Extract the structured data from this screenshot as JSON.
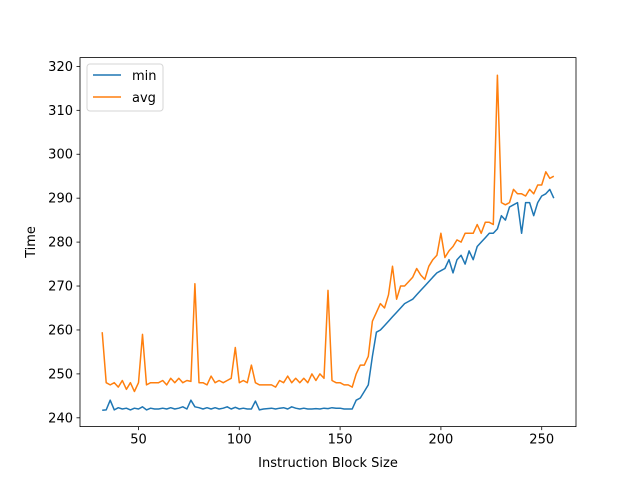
{
  "chart_data": {
    "type": "line",
    "title": "",
    "xlabel": "Instruction Block Size",
    "ylabel": "Time",
    "xlim": [
      21,
      267
    ],
    "ylim": [
      238,
      322
    ],
    "xticks": [
      50,
      100,
      150,
      200,
      250
    ],
    "yticks": [
      240,
      250,
      260,
      270,
      280,
      290,
      300,
      310,
      320
    ],
    "grid": false,
    "legend": "upper-left",
    "x": [
      32,
      34,
      36,
      38,
      40,
      42,
      44,
      46,
      48,
      50,
      52,
      54,
      56,
      58,
      60,
      62,
      64,
      66,
      68,
      70,
      72,
      74,
      76,
      78,
      80,
      82,
      84,
      86,
      88,
      90,
      92,
      94,
      96,
      98,
      100,
      102,
      104,
      106,
      108,
      110,
      112,
      114,
      116,
      118,
      120,
      122,
      124,
      126,
      128,
      130,
      132,
      134,
      136,
      138,
      140,
      142,
      144,
      146,
      148,
      150,
      152,
      154,
      156,
      158,
      160,
      162,
      164,
      166,
      168,
      170,
      172,
      174,
      176,
      178,
      180,
      182,
      184,
      186,
      188,
      190,
      192,
      194,
      196,
      198,
      200,
      202,
      204,
      206,
      208,
      210,
      212,
      214,
      216,
      218,
      220,
      222,
      224,
      226,
      228,
      230,
      232,
      234,
      236,
      238,
      240,
      242,
      244,
      246,
      248,
      250,
      252,
      254,
      256
    ],
    "series": [
      {
        "name": "min",
        "color": "#1f77b4",
        "values": [
          241.7,
          241.8,
          244,
          241.8,
          242.3,
          242,
          242.2,
          241.8,
          242.2,
          242,
          242.5,
          241.8,
          242.2,
          242,
          242,
          242.2,
          242,
          242.3,
          242,
          242.2,
          242.5,
          242,
          244,
          242.5,
          242.3,
          242,
          242.3,
          242,
          242.3,
          242,
          242.2,
          242.5,
          242,
          242.4,
          242,
          242.2,
          242,
          242,
          243.8,
          241.8,
          242,
          242.1,
          242.2,
          242,
          242.2,
          242.3,
          242,
          242.5,
          242.2,
          242,
          242.2,
          242,
          242,
          242.1,
          242,
          242.2,
          242.1,
          242.3,
          242.2,
          242.2,
          242,
          242,
          242,
          244,
          244.5,
          246,
          247.5,
          254,
          259.5,
          260,
          261,
          262,
          263,
          264,
          265,
          266,
          266.5,
          267,
          268,
          269,
          270,
          271,
          272,
          273,
          273.5,
          274,
          276,
          273,
          276,
          277,
          275,
          278,
          276,
          279,
          280,
          281,
          282,
          282,
          283,
          286,
          285,
          288,
          288.5,
          289,
          282,
          289,
          289,
          286,
          289,
          290.5,
          291,
          292,
          290
        ]
      },
      {
        "name": "avg",
        "color": "#ff7f0e",
        "values": [
          259.5,
          248,
          247.5,
          248,
          247,
          248.5,
          246.5,
          248,
          246,
          248,
          259,
          247.5,
          248,
          248,
          248,
          248.5,
          247.5,
          249,
          248,
          249,
          248,
          248.5,
          248.3,
          270.5,
          248,
          248,
          247.5,
          249.5,
          248,
          248.5,
          248,
          248.5,
          249,
          256,
          248,
          248.5,
          248,
          252,
          248,
          247.5,
          247.5,
          247.5,
          247.5,
          247,
          248.5,
          248,
          249.5,
          248,
          249,
          248,
          249,
          248,
          250,
          248.5,
          250,
          249,
          269,
          248.5,
          248,
          248,
          247.5,
          247.5,
          247,
          250,
          252,
          252,
          254,
          262,
          264,
          266,
          265,
          268,
          274.5,
          267,
          270,
          270,
          271,
          272,
          274,
          272.5,
          271.5,
          274.5,
          276,
          277,
          282,
          276.5,
          278,
          279,
          280.5,
          280,
          282,
          282,
          282,
          284,
          282,
          284.5,
          284.5,
          284,
          318,
          289,
          288.5,
          289,
          292,
          291,
          291,
          290.5,
          292,
          291,
          293,
          293,
          296,
          294.5,
          295
        ]
      }
    ]
  }
}
